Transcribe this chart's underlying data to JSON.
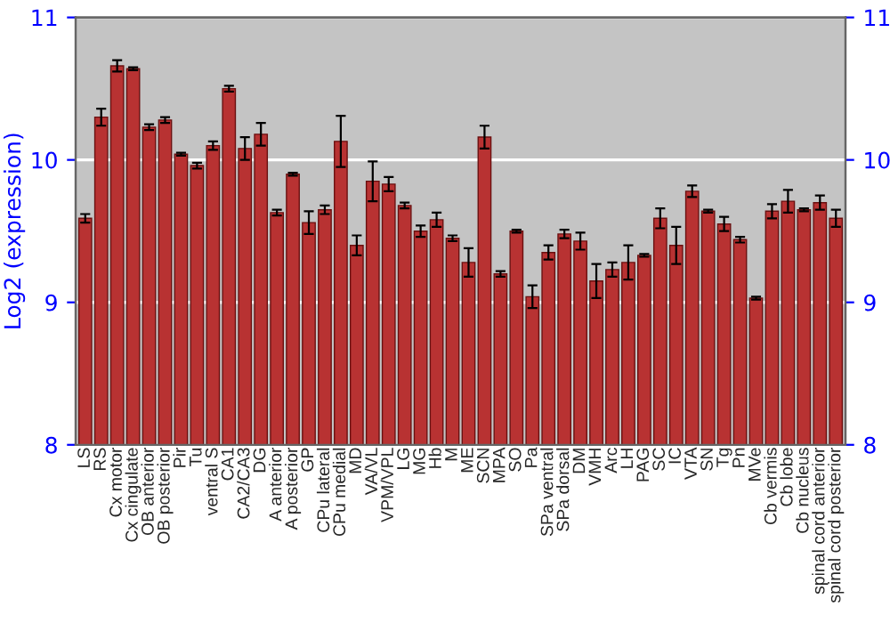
{
  "chart_data": {
    "type": "bar",
    "ylabel": "Log2 (expression)",
    "categories": [
      "LS",
      "RS",
      "Cx motor",
      "Cx cingulate",
      "OB anterior",
      "OB posterior",
      "Pir",
      "Tu",
      "ventral S",
      "CA1",
      "CA2/CA3",
      "DG",
      "A anterior",
      "A posterior",
      "GP",
      "CPu lateral",
      "CPu medial",
      "MD",
      "VA/VL",
      "VPM/VPL",
      "LG",
      "MG",
      "Hb",
      "M",
      "ME",
      "SCN",
      "MPA",
      "SO",
      "Pa",
      "SPa ventral",
      "SPa dorsal",
      "DM",
      "VMH",
      "Arc",
      "LH",
      "PAG",
      "SC",
      "IC",
      "VTA",
      "SN",
      "Tg",
      "Pn",
      "MVe",
      "Cb vermis",
      "Cb lobe",
      "Cb nucleus",
      "spinal cord anterior",
      "spinal cord posterior"
    ],
    "values": [
      9.59,
      10.3,
      10.66,
      10.64,
      10.23,
      10.28,
      10.04,
      9.96,
      10.1,
      10.5,
      10.08,
      10.18,
      9.63,
      9.9,
      9.56,
      9.65,
      10.13,
      9.4,
      9.85,
      9.83,
      9.68,
      9.5,
      9.58,
      9.45,
      9.28,
      10.16,
      9.2,
      9.5,
      9.04,
      9.35,
      9.48,
      9.43,
      9.15,
      9.23,
      9.28,
      9.33,
      9.59,
      9.4,
      9.78,
      9.64,
      9.55,
      9.44,
      9.03,
      9.64,
      9.71,
      9.65,
      9.7,
      9.59
    ],
    "errors": [
      0.03,
      0.06,
      0.04,
      0.01,
      0.02,
      0.02,
      0.01,
      0.02,
      0.03,
      0.02,
      0.08,
      0.08,
      0.02,
      0.01,
      0.08,
      0.03,
      0.18,
      0.07,
      0.14,
      0.05,
      0.02,
      0.04,
      0.05,
      0.02,
      0.1,
      0.08,
      0.02,
      0.01,
      0.08,
      0.05,
      0.03,
      0.06,
      0.12,
      0.05,
      0.12,
      0.01,
      0.07,
      0.13,
      0.04,
      0.01,
      0.05,
      0.02,
      0.01,
      0.05,
      0.08,
      0.01,
      0.05,
      0.06
    ],
    "color": "#b83232",
    "ylim": [
      8,
      11
    ],
    "yticks": [
      8,
      9,
      10,
      11
    ],
    "y2lim": [
      8,
      11
    ],
    "y2ticks": [
      8,
      9,
      10,
      11
    ],
    "grid": "y"
  }
}
